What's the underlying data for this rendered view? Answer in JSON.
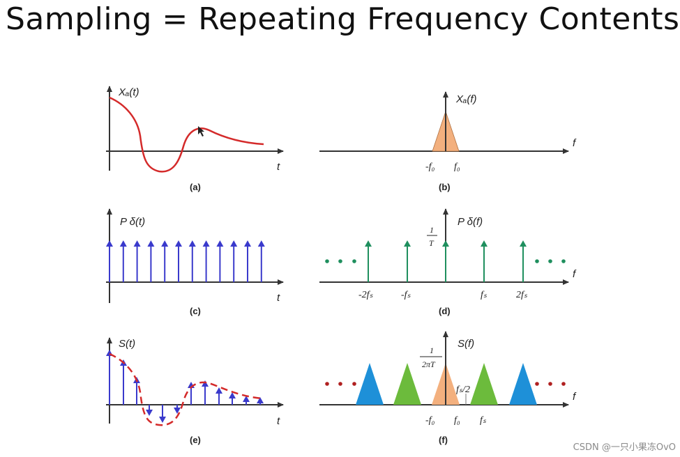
{
  "title": "Sampling = Repeating Frequency Contents",
  "watermark": "CSDN @一只小果冻OvO",
  "colors": {
    "signal_red": "#d42a2a",
    "impulse_blue": "#3a3acc",
    "spectrum_green": "#1f8f5e",
    "dots_green": "#1f8f5e",
    "dots_red": "#b02020",
    "band_orange": "#f3b07e",
    "band_green": "#6cbb3c",
    "band_blue": "#1e90d8"
  },
  "panels": {
    "a": {
      "caption": "(a)",
      "ylabel": "Xₐ(t)",
      "xlabel": "t"
    },
    "b": {
      "caption": "(b)",
      "ylabel": "Xₐ(f)",
      "xlabel": "f",
      "ticks": [
        "-f₀",
        "f₀"
      ]
    },
    "c": {
      "caption": "(c)",
      "ylabel": "P δ(t)",
      "xlabel": "t"
    },
    "d": {
      "caption": "(d)",
      "ylabel": "P δ(f)",
      "xlabel": "f",
      "amp_num": "1",
      "amp_den": "T",
      "ticks": [
        "-2fₛ",
        "-fₛ",
        "fₛ",
        "2fₛ"
      ]
    },
    "e": {
      "caption": "(e)",
      "ylabel": "S(t)",
      "xlabel": "t"
    },
    "f": {
      "caption": "(f)",
      "ylabel": "S(f)",
      "xlabel": "f",
      "amp_num": "1",
      "amp_den": "2πT",
      "half_label": "fₛ/2",
      "ticks": [
        "-f₀",
        "f₀",
        "fₛ"
      ]
    }
  }
}
